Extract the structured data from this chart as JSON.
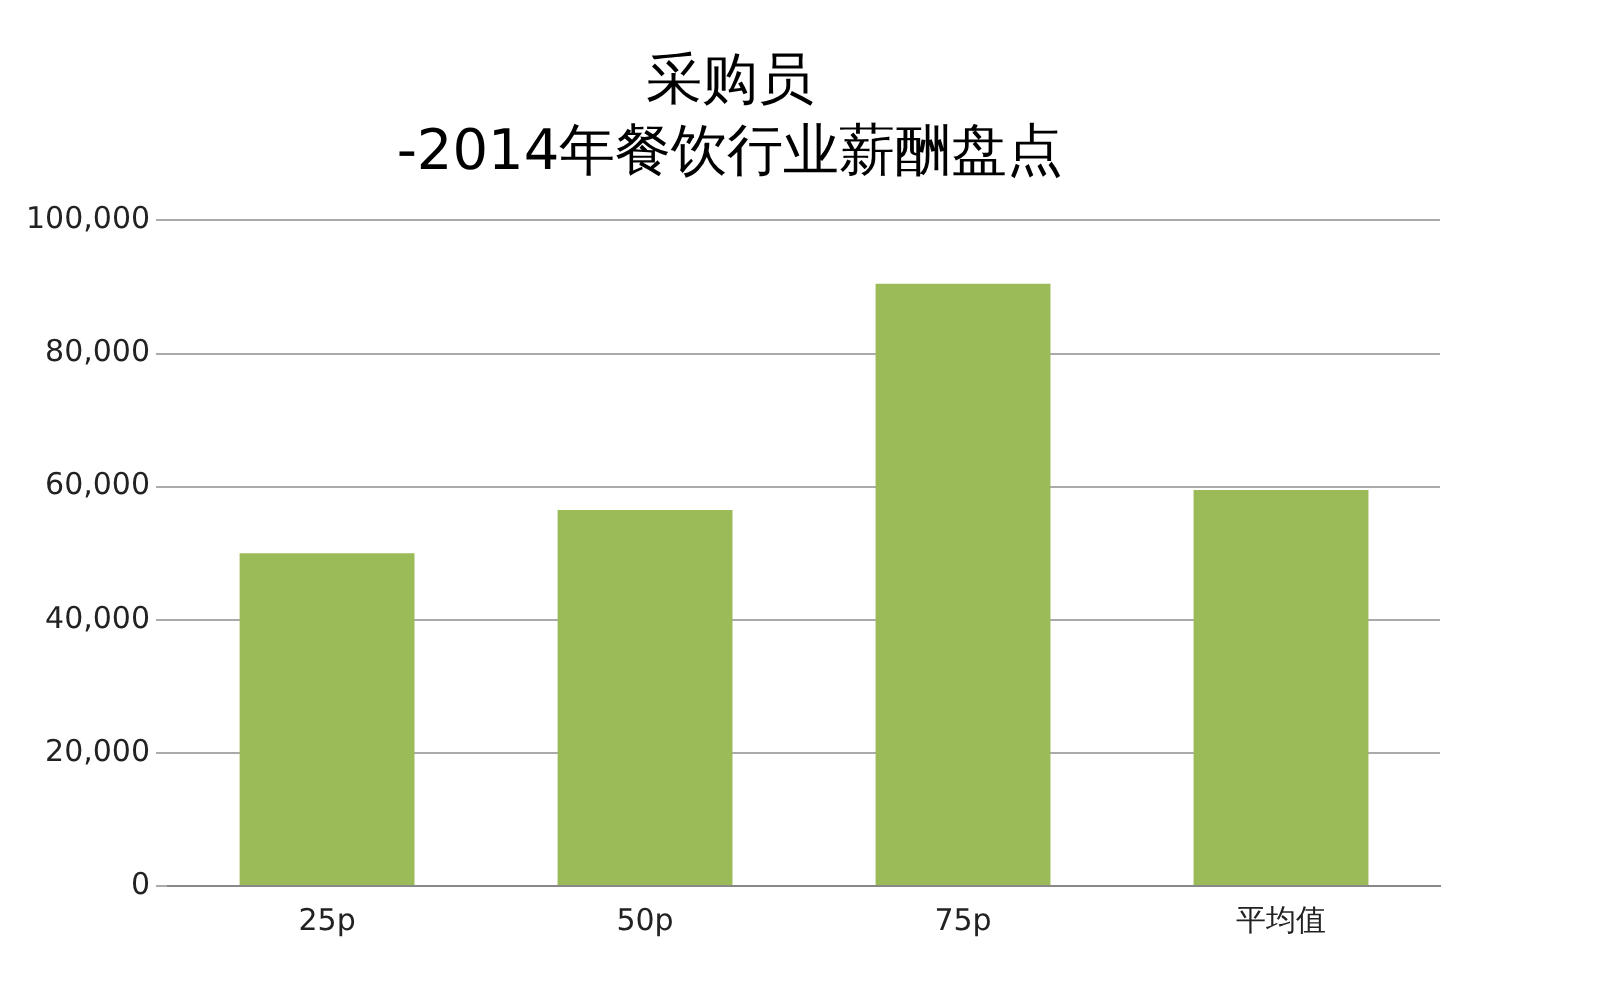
{
  "chart_data": {
    "type": "bar",
    "title": "采购员",
    "subtitle": "-2014年餐饮行业薪酬盘点",
    "categories": [
      "25p",
      "50p",
      "75p",
      "平均值"
    ],
    "values": [
      50000,
      56500,
      90500,
      59500
    ],
    "color": "#9bbb59",
    "ylim": [
      0,
      100000
    ],
    "yticks": [
      {
        "value": 0,
        "label": "0"
      },
      {
        "value": 20000,
        "label": "20,000"
      },
      {
        "value": 40000,
        "label": "40,000"
      },
      {
        "value": 60000,
        "label": "60,000"
      },
      {
        "value": 80000,
        "label": "80,000"
      },
      {
        "value": 100000,
        "label": "100,000"
      }
    ],
    "grid": "y",
    "legend": false
  }
}
